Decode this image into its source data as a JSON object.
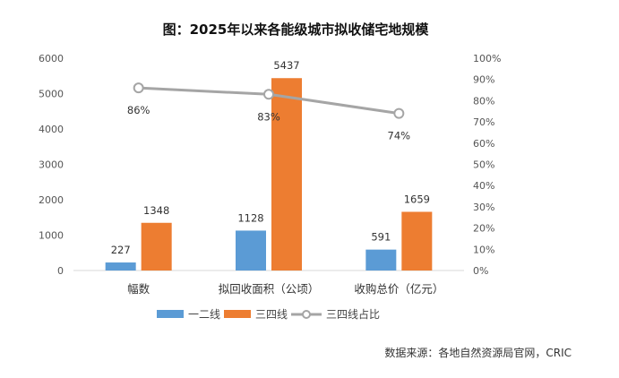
{
  "chart_data": {
    "type": "bar",
    "title": "图：2025年以来各能级城市拟收储宅地规模",
    "categories": [
      "幅数",
      "拟回收面积（公顷）",
      "收购总价（亿元）"
    ],
    "series": [
      {
        "name": "一二线",
        "type": "bar",
        "axis": "left",
        "color": "#5b9bd5",
        "values": [
          227,
          1128,
          591
        ]
      },
      {
        "name": "三四线",
        "type": "bar",
        "axis": "left",
        "color": "#ed7d31",
        "values": [
          1348,
          5437,
          1659
        ]
      },
      {
        "name": "三四线占比",
        "type": "line",
        "axis": "right",
        "color": "#a5a5a5",
        "values": [
          0.86,
          0.83,
          0.74
        ],
        "labels": [
          "86%",
          "83%",
          "74%"
        ]
      }
    ],
    "y_left": {
      "min": 0,
      "max": 6000,
      "ticks": [
        "0",
        "1000",
        "2000",
        "3000",
        "4000",
        "5000",
        "6000"
      ]
    },
    "y_right": {
      "min": 0,
      "max": 1,
      "ticks": [
        "0%",
        "10%",
        "20%",
        "30%",
        "40%",
        "50%",
        "60%",
        "70%",
        "80%",
        "90%",
        "100%"
      ]
    },
    "legend_position": "bottom",
    "grid": false
  },
  "source": "数据来源：各地自然资源局官网，CRIC"
}
